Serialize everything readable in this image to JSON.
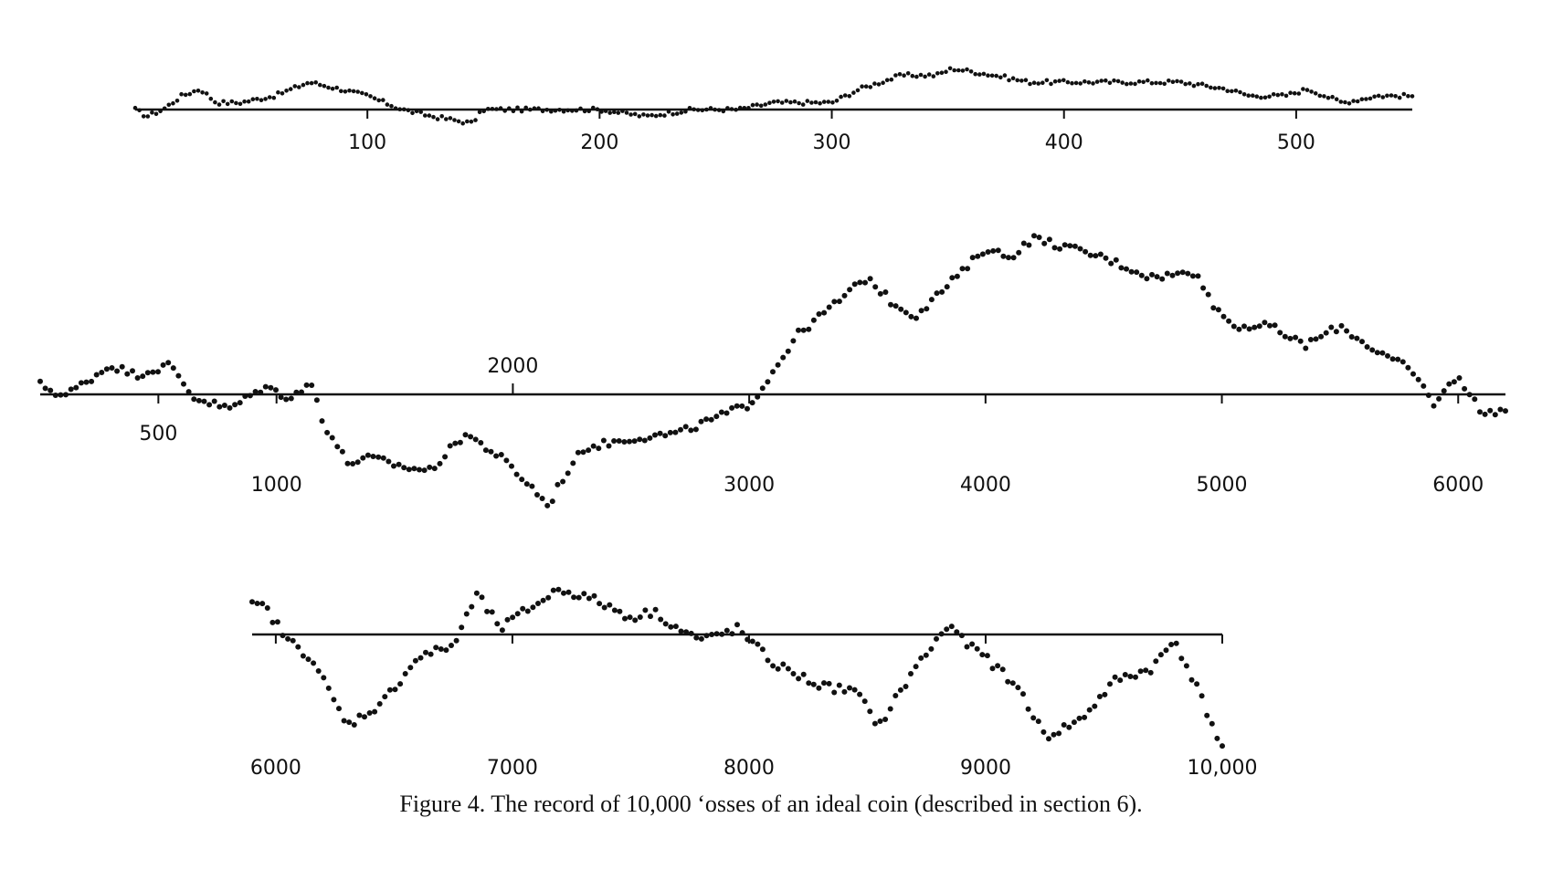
{
  "caption": "Figure 4.  The record of 10,000 ‘osses of an ideal coin (described in section 6).",
  "colors": {
    "ink": "#111111",
    "background": "#ffffff"
  },
  "chart_data": [
    {
      "type": "scatter",
      "panel": "top",
      "xlim": [
        0,
        550
      ],
      "grid": false,
      "ticks": [
        {
          "x": 100,
          "label": "100"
        },
        {
          "x": 200,
          "label": "200"
        },
        {
          "x": 300,
          "label": "300"
        },
        {
          "x": 400,
          "label": "400"
        },
        {
          "x": 500,
          "label": "500"
        }
      ],
      "anchors": [
        [
          0,
          0
        ],
        [
          5,
          -1
        ],
        [
          12,
          0
        ],
        [
          20,
          2
        ],
        [
          28,
          3
        ],
        [
          35,
          1
        ],
        [
          45,
          1
        ],
        [
          60,
          2
        ],
        [
          75,
          4
        ],
        [
          88,
          3
        ],
        [
          100,
          2
        ],
        [
          115,
          0
        ],
        [
          128,
          -1
        ],
        [
          145,
          -2
        ],
        [
          150,
          0
        ],
        [
          170,
          0
        ],
        [
          200,
          0
        ],
        [
          220,
          -1
        ],
        [
          240,
          0
        ],
        [
          260,
          0
        ],
        [
          275,
          1
        ],
        [
          300,
          1
        ],
        [
          312,
          3
        ],
        [
          330,
          5
        ],
        [
          345,
          5
        ],
        [
          352,
          6
        ],
        [
          370,
          5
        ],
        [
          385,
          4
        ],
        [
          400,
          4
        ],
        [
          430,
          4
        ],
        [
          450,
          4
        ],
        [
          470,
          3
        ],
        [
          480,
          2
        ],
        [
          495,
          2
        ],
        [
          505,
          3
        ],
        [
          520,
          1
        ],
        [
          535,
          2
        ],
        [
          540,
          2
        ]
      ]
    },
    {
      "type": "scatter",
      "panel": "middle",
      "xlim": [
        0,
        6200
      ],
      "grid": false,
      "ticks": [
        {
          "x": 500,
          "label": "500",
          "side": "below"
        },
        {
          "x": 1000,
          "label": "1000",
          "side": "below"
        },
        {
          "x": 2000,
          "label": "2000",
          "side": "above"
        },
        {
          "x": 3000,
          "label": "3000",
          "side": "below"
        },
        {
          "x": 4000,
          "label": "4000",
          "side": "below"
        },
        {
          "x": 5000,
          "label": "5000",
          "side": "below"
        },
        {
          "x": 6000,
          "label": "6000",
          "side": "below"
        }
      ],
      "anchors": [
        [
          0,
          10
        ],
        [
          100,
          -2
        ],
        [
          300,
          30
        ],
        [
          400,
          20
        ],
        [
          550,
          30
        ],
        [
          650,
          -3
        ],
        [
          800,
          -15
        ],
        [
          950,
          8
        ],
        [
          1050,
          -3
        ],
        [
          1150,
          10
        ],
        [
          1200,
          -30
        ],
        [
          1300,
          -70
        ],
        [
          1400,
          -65
        ],
        [
          1550,
          -75
        ],
        [
          1650,
          -78
        ],
        [
          1800,
          -40
        ],
        [
          1950,
          -65
        ],
        [
          2100,
          -100
        ],
        [
          2150,
          -115
        ],
        [
          2200,
          -90
        ],
        [
          2300,
          -55
        ],
        [
          2500,
          -45
        ],
        [
          2700,
          -40
        ],
        [
          2900,
          -20
        ],
        [
          3000,
          -10
        ],
        [
          3050,
          5
        ],
        [
          3200,
          60
        ],
        [
          3400,
          100
        ],
        [
          3500,
          120
        ],
        [
          3600,
          95
        ],
        [
          3700,
          80
        ],
        [
          3900,
          125
        ],
        [
          4000,
          150
        ],
        [
          4100,
          140
        ],
        [
          4200,
          160
        ],
        [
          4350,
          150
        ],
        [
          4500,
          140
        ],
        [
          4700,
          120
        ],
        [
          4900,
          125
        ],
        [
          4950,
          95
        ],
        [
          5050,
          70
        ],
        [
          5200,
          70
        ],
        [
          5350,
          50
        ],
        [
          5500,
          70
        ],
        [
          5650,
          45
        ],
        [
          5800,
          25
        ],
        [
          5900,
          -10
        ],
        [
          6000,
          20
        ],
        [
          6100,
          -20
        ],
        [
          6200,
          -15
        ]
      ]
    },
    {
      "type": "scatter",
      "panel": "bottom",
      "xlim": [
        5900,
        10000
      ],
      "grid": false,
      "ticks": [
        {
          "x": 6000,
          "label": "6000"
        },
        {
          "x": 7000,
          "label": "7000"
        },
        {
          "x": 8000,
          "label": "8000"
        },
        {
          "x": 9000,
          "label": "9000"
        },
        {
          "x": 10000,
          "label": "10,000"
        }
      ],
      "anchors": [
        [
          5950,
          25
        ],
        [
          6050,
          -5
        ],
        [
          6150,
          -20
        ],
        [
          6250,
          -60
        ],
        [
          6300,
          -80
        ],
        [
          6450,
          -60
        ],
        [
          6600,
          -20
        ],
        [
          6750,
          -10
        ],
        [
          6850,
          35
        ],
        [
          6950,
          5
        ],
        [
          7050,
          20
        ],
        [
          7200,
          40
        ],
        [
          7350,
          30
        ],
        [
          7500,
          15
        ],
        [
          7600,
          20
        ],
        [
          7700,
          5
        ],
        [
          7800,
          -5
        ],
        [
          7950,
          5
        ],
        [
          8100,
          -25
        ],
        [
          8300,
          -45
        ],
        [
          8450,
          -50
        ],
        [
          8550,
          -80
        ],
        [
          8700,
          -30
        ],
        [
          8850,
          10
        ],
        [
          8900,
          -5
        ],
        [
          9000,
          -20
        ],
        [
          9150,
          -50
        ],
        [
          9250,
          -90
        ],
        [
          9400,
          -75
        ],
        [
          9550,
          -40
        ],
        [
          9700,
          -30
        ],
        [
          9800,
          -5
        ],
        [
          9900,
          -50
        ],
        [
          10000,
          -100
        ]
      ]
    }
  ]
}
